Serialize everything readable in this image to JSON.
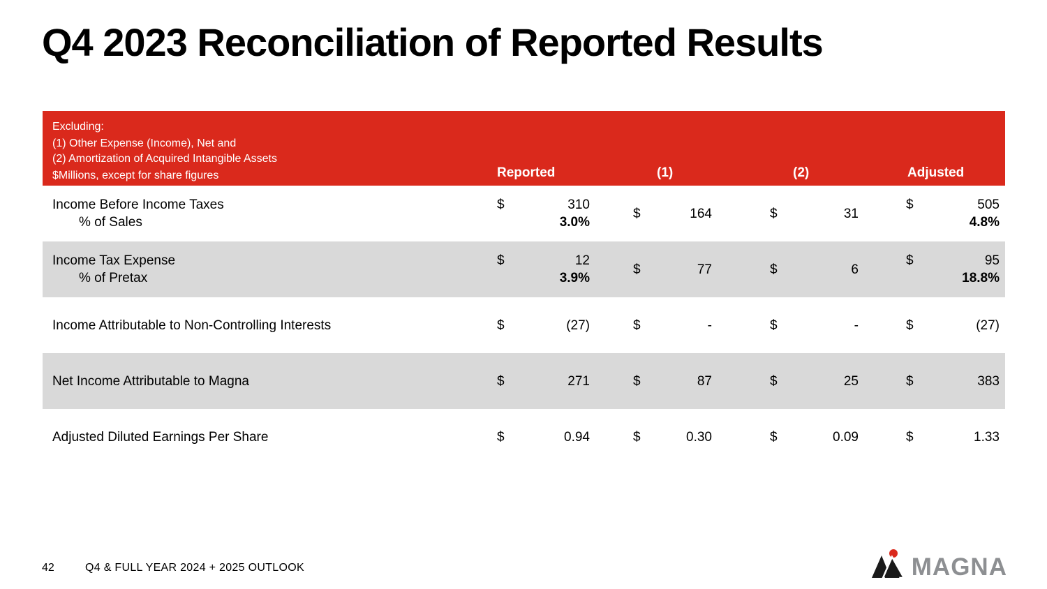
{
  "slide": {
    "title": "Q4 2023 Reconciliation of Reported Results",
    "footer": {
      "page_number": "42",
      "label": "Q4 & FULL YEAR 2024 + 2025 OUTLOOK",
      "logo_text": "MAGNA"
    }
  },
  "table": {
    "header": {
      "notes": [
        "Excluding:",
        "(1) Other Expense (Income), Net and",
        "(2) Amortization of Acquired Intangible Assets",
        "$Millions, except for share figures"
      ],
      "columns": [
        "Reported",
        "(1)",
        "(2)",
        "Adjusted"
      ]
    },
    "rows": [
      {
        "label": "Income Before Income Taxes",
        "sublabel": "% of Sales",
        "shaded": false,
        "values": [
          {
            "currency": "$",
            "amount": "310",
            "percent": "3.0%"
          },
          {
            "currency": "$",
            "amount": "164",
            "percent": ""
          },
          {
            "currency": "$",
            "amount": "31",
            "percent": ""
          },
          {
            "currency": "$",
            "amount": "505",
            "percent": "4.8%"
          }
        ]
      },
      {
        "label": "Income Tax Expense",
        "sublabel": "% of Pretax",
        "shaded": true,
        "values": [
          {
            "currency": "$",
            "amount": "12",
            "percent": "3.9%"
          },
          {
            "currency": "$",
            "amount": "77",
            "percent": ""
          },
          {
            "currency": "$",
            "amount": "6",
            "percent": ""
          },
          {
            "currency": "$",
            "amount": "95",
            "percent": "18.8%"
          }
        ]
      },
      {
        "label": "Income Attributable to Non-Controlling Interests",
        "sublabel": "",
        "shaded": false,
        "values": [
          {
            "currency": "$",
            "amount": "(27)",
            "percent": ""
          },
          {
            "currency": "$",
            "amount": "-",
            "percent": ""
          },
          {
            "currency": "$",
            "amount": "-",
            "percent": ""
          },
          {
            "currency": "$",
            "amount": "(27)",
            "percent": ""
          }
        ]
      },
      {
        "label": "Net Income Attributable to Magna",
        "sublabel": "",
        "shaded": true,
        "values": [
          {
            "currency": "$",
            "amount": "271",
            "percent": ""
          },
          {
            "currency": "$",
            "amount": "87",
            "percent": ""
          },
          {
            "currency": "$",
            "amount": "25",
            "percent": ""
          },
          {
            "currency": "$",
            "amount": "383",
            "percent": ""
          }
        ]
      },
      {
        "label": "Adjusted Diluted Earnings Per Share",
        "sublabel": "",
        "shaded": false,
        "values": [
          {
            "currency": "$",
            "amount": "0.94",
            "percent": ""
          },
          {
            "currency": "$",
            "amount": "0.30",
            "percent": ""
          },
          {
            "currency": "$",
            "amount": "0.09",
            "percent": ""
          },
          {
            "currency": "$",
            "amount": "1.33",
            "percent": ""
          }
        ]
      }
    ]
  },
  "colors": {
    "accent_red": "#DA291C",
    "row_shade": "#D9D9D9",
    "logo_gray": "#8D8F92"
  }
}
